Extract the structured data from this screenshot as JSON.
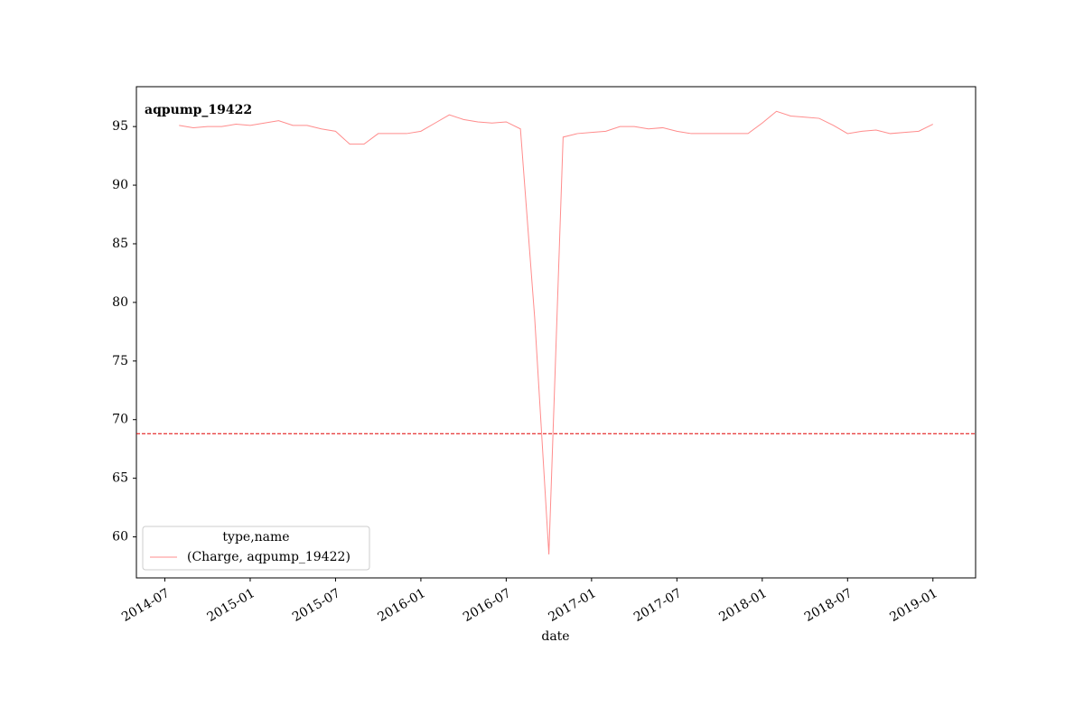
{
  "chart_data": {
    "type": "line",
    "title": "aqpump_19422",
    "x_label": "date",
    "legend_title": "type,name",
    "legend_position": "lower left",
    "x": [
      "2014-08",
      "2014-09",
      "2014-10",
      "2014-11",
      "2014-12",
      "2015-01",
      "2015-02",
      "2015-03",
      "2015-04",
      "2015-05",
      "2015-06",
      "2015-07",
      "2015-08",
      "2015-09",
      "2015-10",
      "2015-11",
      "2015-12",
      "2016-01",
      "2016-02",
      "2016-03",
      "2016-04",
      "2016-05",
      "2016-06",
      "2016-07",
      "2016-08",
      "2016-09",
      "2016-10",
      "2016-11",
      "2016-12",
      "2017-01",
      "2017-02",
      "2017-03",
      "2017-04",
      "2017-05",
      "2017-06",
      "2017-07",
      "2017-08",
      "2017-09",
      "2017-10",
      "2017-11",
      "2017-12",
      "2018-01",
      "2018-02",
      "2018-03",
      "2018-04",
      "2018-05",
      "2018-06",
      "2018-07",
      "2018-08",
      "2018-09",
      "2018-10",
      "2018-11",
      "2018-12",
      "2019-01"
    ],
    "series": [
      {
        "name": "(Charge, aqpump_19422)",
        "color": "#ff8c8c",
        "values": [
          95.1,
          94.9,
          95.0,
          95.0,
          95.2,
          95.1,
          95.3,
          95.5,
          95.1,
          95.1,
          94.8,
          94.6,
          93.5,
          93.5,
          94.4,
          94.4,
          94.4,
          94.6,
          95.3,
          96.0,
          95.6,
          95.4,
          95.3,
          95.4,
          94.8,
          78.7,
          58.5,
          94.1,
          94.4,
          94.5,
          94.6,
          95.0,
          95.0,
          94.8,
          94.9,
          94.6,
          94.4,
          94.4,
          94.4,
          94.4,
          94.4,
          95.3,
          96.3,
          95.9,
          95.8,
          95.7,
          95.1,
          94.4,
          94.6,
          94.7,
          94.4,
          94.5,
          94.6,
          95.2
        ]
      }
    ],
    "threshold": 68.8,
    "threshold_color": "#e00000",
    "xlim": [
      "2014-05",
      "2019-04"
    ],
    "xticks": [
      "2014-07",
      "2015-01",
      "2015-07",
      "2016-01",
      "2016-07",
      "2017-01",
      "2017-07",
      "2018-01",
      "2018-07",
      "2019-01"
    ],
    "ylim": [
      56.5,
      98.4
    ],
    "yticks": [
      60,
      65,
      70,
      75,
      80,
      85,
      90,
      95
    ],
    "grid": false
  }
}
